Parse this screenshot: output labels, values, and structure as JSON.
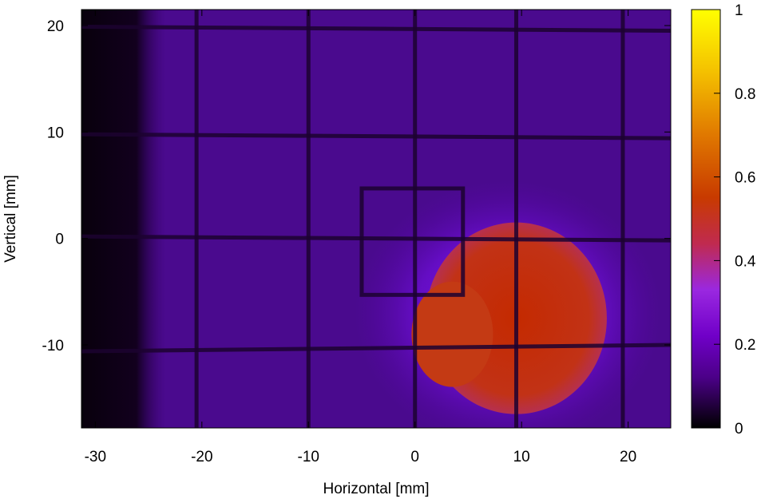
{
  "chart_data": {
    "type": "heatmap",
    "title": "",
    "xlabel": "Horizontal [mm]",
    "ylabel": "Vertical [mm]",
    "xlim": [
      -31.3,
      24.0
    ],
    "ylim": [
      -17.8,
      21.5
    ],
    "xticks": [
      -30,
      -20,
      -10,
      0,
      10,
      20
    ],
    "yticks": [
      20,
      10,
      0,
      -10
    ],
    "xtick_labels": [
      "-30",
      "-20",
      "-10",
      "0",
      "10",
      "20"
    ],
    "ytick_labels": [
      "20",
      "10",
      "0",
      "-10"
    ],
    "colorbar": {
      "range": [
        0,
        1
      ],
      "ticks": [
        0,
        0.2,
        0.4,
        0.6,
        0.8,
        1
      ],
      "tick_labels": [
        "0",
        "0.2",
        "0.4",
        "0.6",
        "0.8",
        "1"
      ],
      "colormap": [
        "#000000",
        "#4b0087",
        "#7000c8",
        "#9a28e0",
        "#c02a50",
        "#c83a00",
        "#e07800",
        "#f4c000",
        "#ffff00"
      ]
    },
    "background_level": 0.12,
    "beam_spot": {
      "center": [
        9.5,
        -7.5
      ],
      "radius_x": 8.5,
      "radius_y": 9.0,
      "peak_level": 0.55,
      "halo_level": 0.28
    },
    "grid_wires_vertical_x": [
      -20.5,
      -10,
      0,
      9.5,
      19.5
    ],
    "grid_wires_horizontal_y": [
      19.7,
      9.6,
      0.0,
      -10.3
    ],
    "inner_square": {
      "x": [
        -5.0,
        4.5
      ],
      "y": [
        -5.3,
        4.7
      ]
    },
    "dark_left_edge_x": -24.5
  }
}
